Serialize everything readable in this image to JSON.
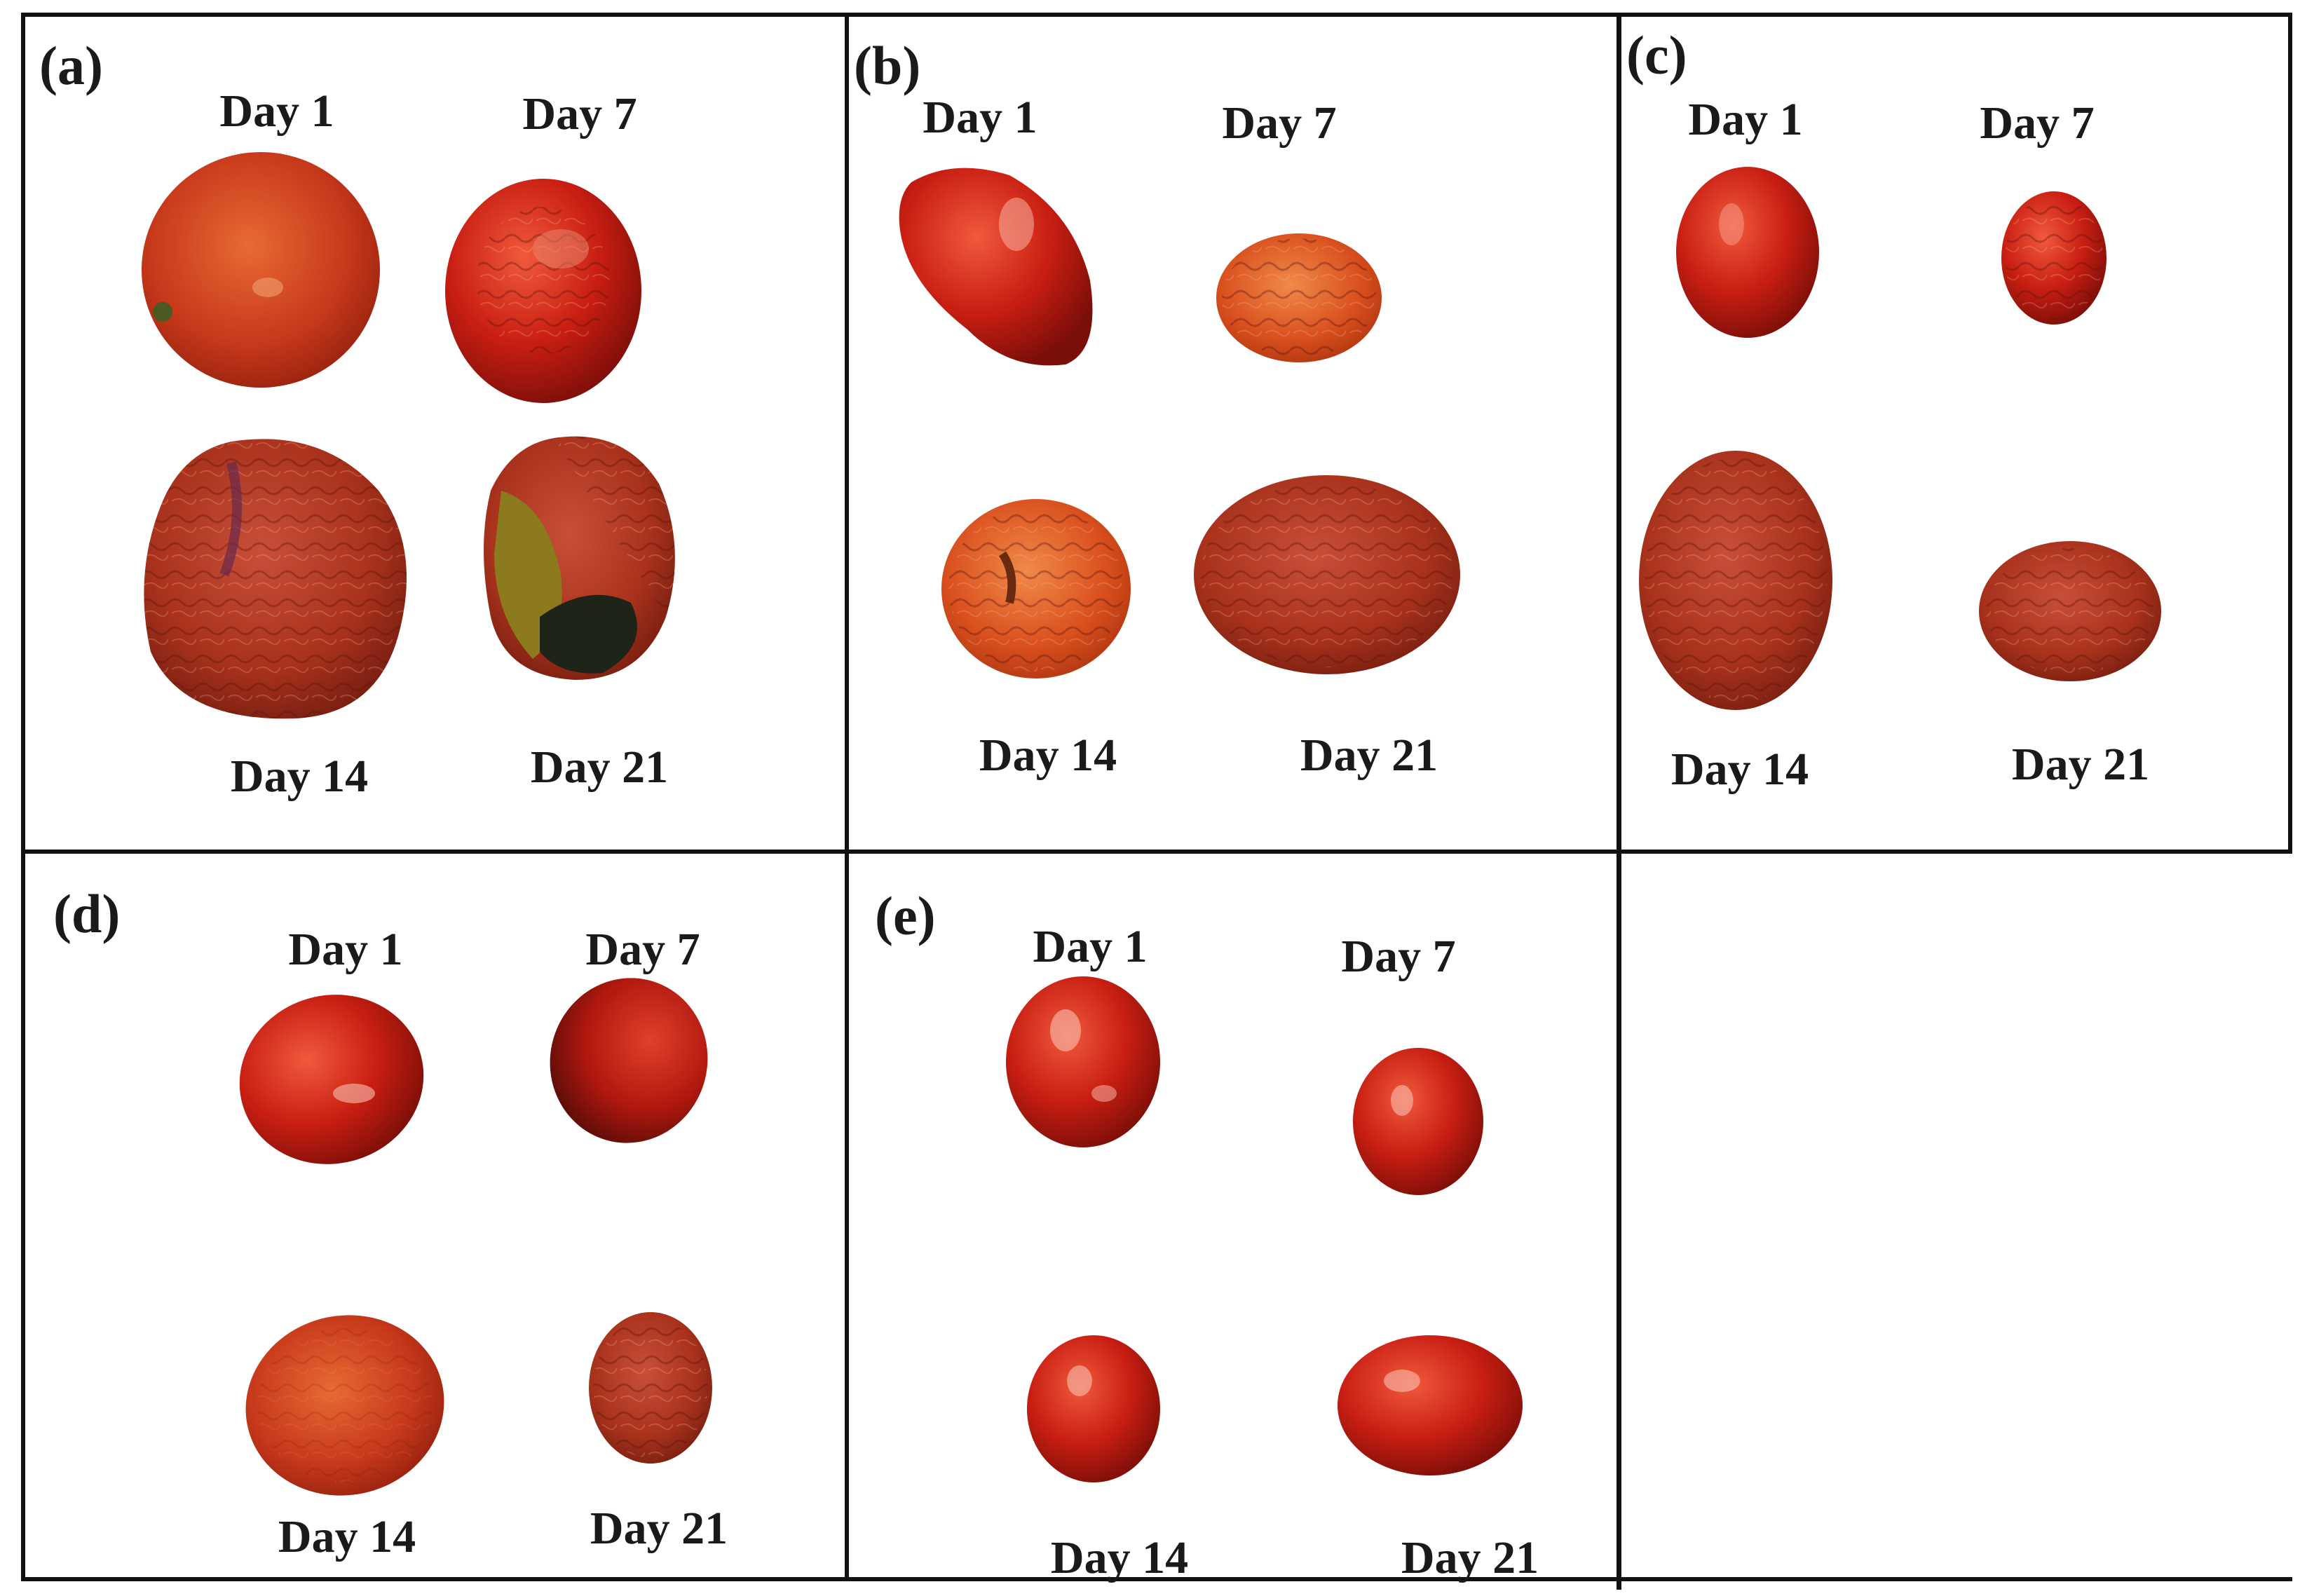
{
  "panels": [
    {
      "label": "(a)",
      "days": [
        "Day 1",
        "Day 7",
        "Day 14",
        "Day 21"
      ]
    },
    {
      "label": "(b)",
      "days": [
        "Day 1",
        "Day 7",
        "Day 14",
        "Day 21"
      ]
    },
    {
      "label": "(c)",
      "days": [
        "Day 1",
        "Day 7",
        "Day 14",
        "Day 21"
      ]
    },
    {
      "label": "(d)",
      "days": [
        "Day 1",
        "Day 7",
        "Day 14",
        "Day 21"
      ]
    },
    {
      "label": "(e)",
      "days": [
        "Day 1",
        "Day 7",
        "Day 14",
        "Day 21"
      ]
    }
  ],
  "colors": {
    "border": "#111111",
    "text": "#1a1a1a",
    "tomato_fresh": "#c81e12",
    "tomato_aged": "#a8321c",
    "tomato_orange": "#d9501e",
    "rot_yellow": "#8c7a1e",
    "rot_dark": "#1e2418"
  }
}
